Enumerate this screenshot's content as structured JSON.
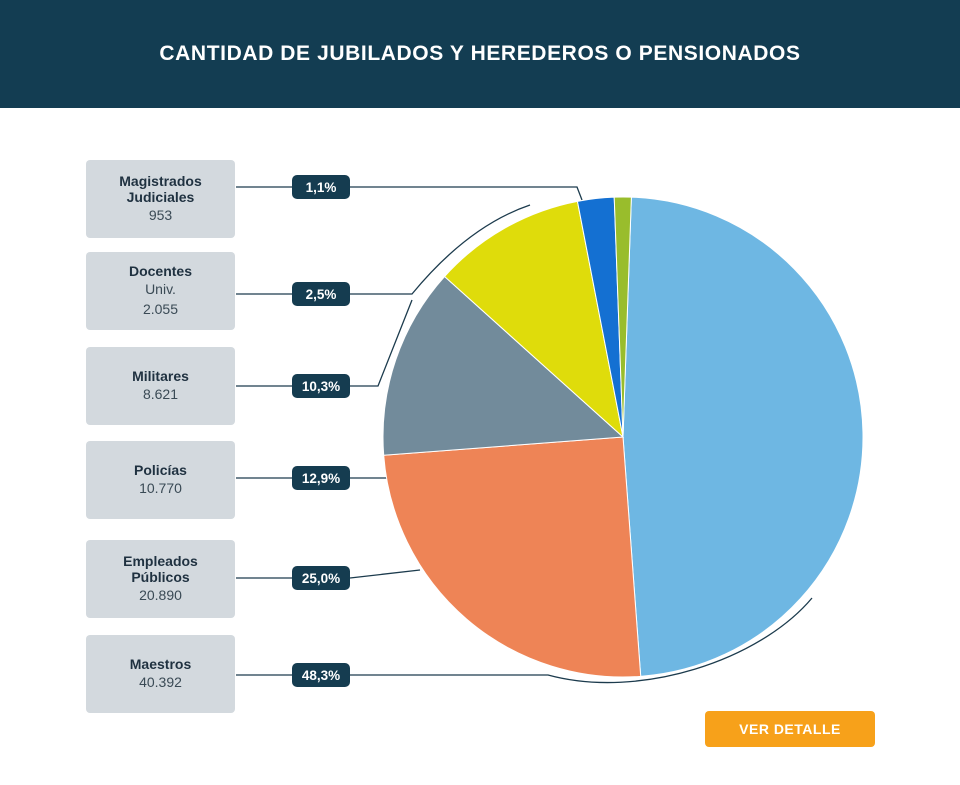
{
  "header": {
    "title": "CANTIDAD DE JUBILADOS Y HEREDEROS O PENSIONADOS"
  },
  "chart_data": {
    "type": "pie",
    "title": "CANTIDAD DE JUBILADOS Y HEREDEROS O PENSIONADOS",
    "slices": [
      {
        "name": "Maestros",
        "sublabel": "",
        "value": 40392,
        "value_label": "40.392",
        "percent": 48.3,
        "percent_label": "48,3%",
        "color": "#6eb7e3"
      },
      {
        "name": "Empleados Públicos",
        "sublabel": "",
        "value": 20890,
        "value_label": "20.890",
        "percent": 25.0,
        "percent_label": "25,0%",
        "color": "#ee8456"
      },
      {
        "name": "Policías",
        "sublabel": "",
        "value": 10770,
        "value_label": "10.770",
        "percent": 12.9,
        "percent_label": "12,9%",
        "color": "#728b9b"
      },
      {
        "name": "Militares",
        "sublabel": "",
        "value": 8621,
        "value_label": "8.621",
        "percent": 10.3,
        "percent_label": "10,3%",
        "color": "#dfdc0b"
      },
      {
        "name": "Docentes",
        "sublabel": "Univ.",
        "value": 2055,
        "value_label": "2.055",
        "percent": 2.5,
        "percent_label": "2,5%",
        "color": "#1470d2"
      },
      {
        "name": "Magistrados Judiciales",
        "sublabel": "",
        "value": 953,
        "value_label": "953",
        "percent": 1.1,
        "percent_label": "1,1%",
        "color": "#99bd2c"
      }
    ]
  },
  "button": {
    "label": "VER DETALLE",
    "color": "#f7a11a"
  }
}
